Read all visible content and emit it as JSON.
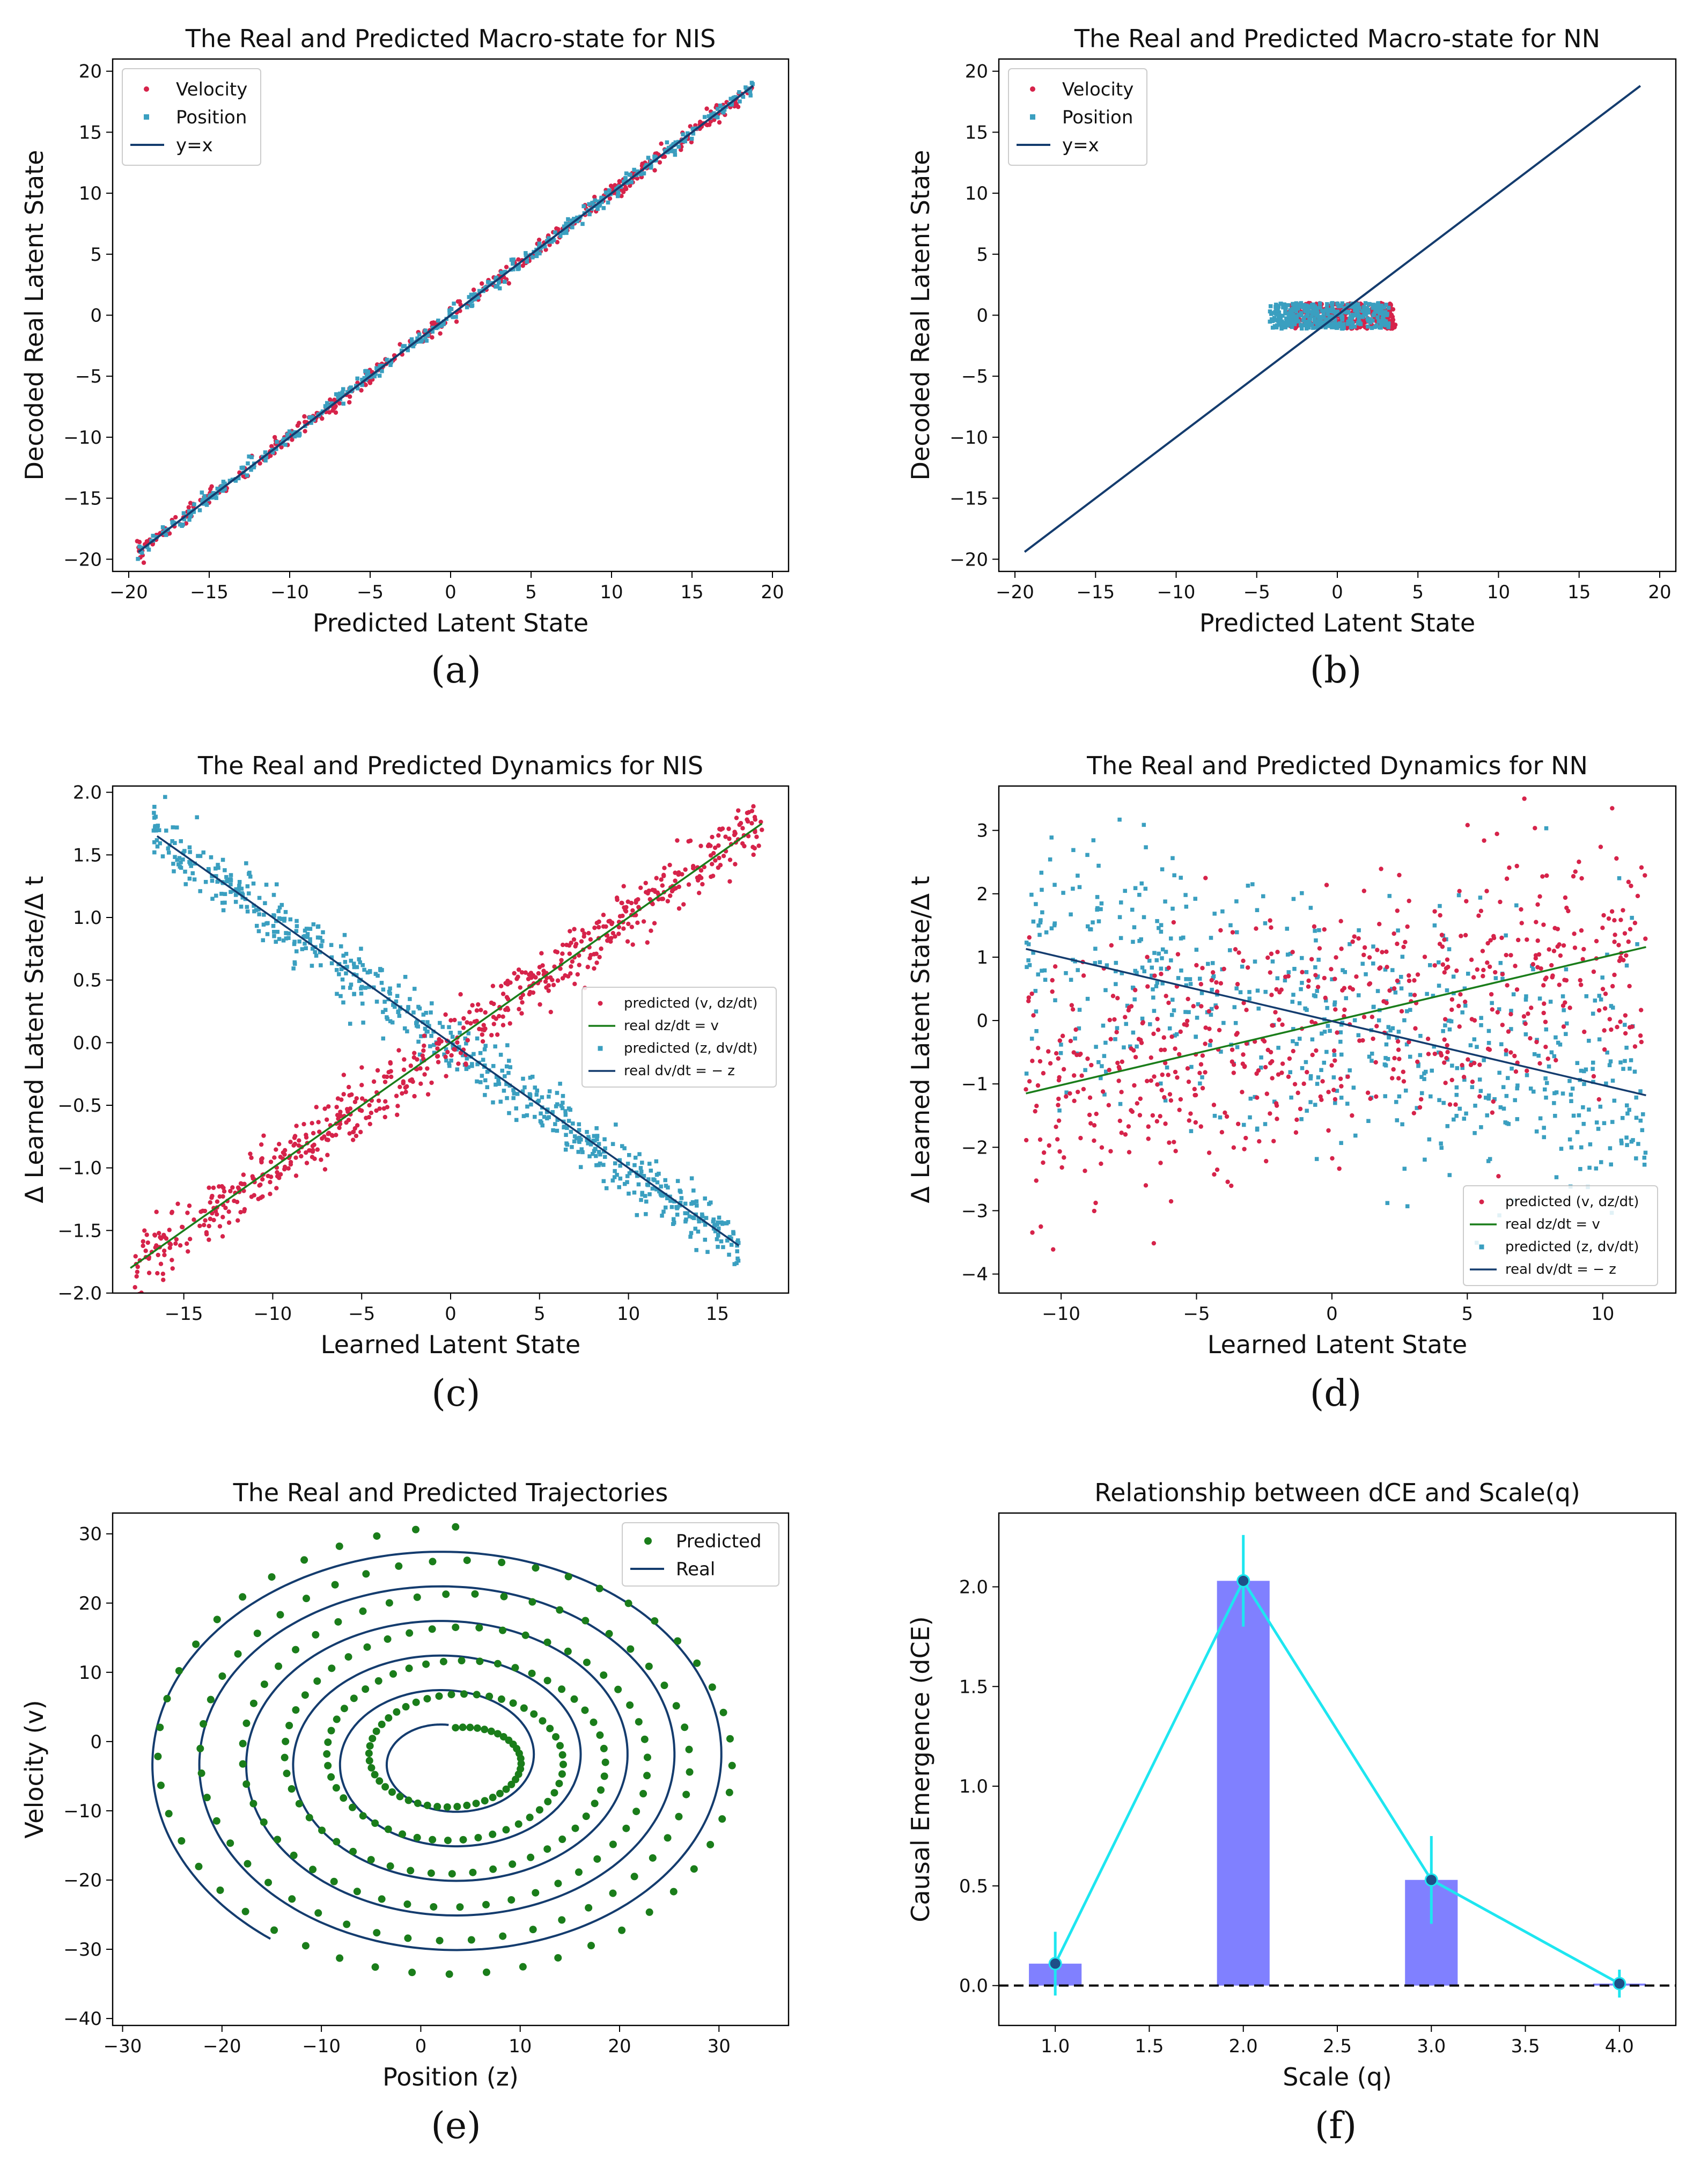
{
  "colors": {
    "velocity": "#d6234a",
    "position": "#3a9fc0",
    "line": "#143c6e",
    "green": "#1a7d1a",
    "bar": "#8080ff",
    "cyan": "#1ee6f0",
    "marker": "#1f4f87"
  },
  "chart_data": [
    {
      "id": "a",
      "type": "scatter",
      "title": "The Real and Predicted Macro-state for NIS",
      "xlabel": "Predicted Latent State",
      "ylabel": "Decoded Real Latent State",
      "xlim": [
        -21,
        21
      ],
      "ylim": [
        -21,
        21
      ],
      "xticks": [
        -20,
        -15,
        -10,
        -5,
        0,
        5,
        10,
        15,
        20
      ],
      "yticks": [
        -20,
        -15,
        -10,
        -5,
        0,
        5,
        10,
        15,
        20
      ],
      "legend": [
        "Velocity",
        "Position",
        "y=x"
      ],
      "legend_loc": "upper-left",
      "series": [
        {
          "name": "Velocity",
          "kind": "dots",
          "relation": "y = x with small noise",
          "x_range": [
            -19.5,
            18.8
          ],
          "noise": 0.35
        },
        {
          "name": "Position",
          "kind": "squares",
          "relation": "y = x with small noise",
          "x_range": [
            -19.5,
            18.8
          ],
          "noise": 0.3
        },
        {
          "name": "y=x",
          "kind": "line",
          "x": [
            -19.4,
            18.8
          ],
          "y": [
            -19.4,
            18.8
          ]
        }
      ],
      "caption": "(a)"
    },
    {
      "id": "b",
      "type": "scatter",
      "title": "The Real and Predicted Macro-state for NN",
      "xlabel": "Predicted Latent State",
      "ylabel": "Decoded Real Latent State",
      "xlim": [
        -21,
        21
      ],
      "ylim": [
        -21,
        21
      ],
      "xticks": [
        -20,
        -15,
        -10,
        -5,
        0,
        5,
        10,
        15,
        20
      ],
      "yticks": [
        -20,
        -15,
        -10,
        -5,
        0,
        5,
        10,
        15,
        20
      ],
      "legend": [
        "Velocity",
        "Position",
        "y=x"
      ],
      "legend_loc": "upper-left",
      "series": [
        {
          "name": "Velocity",
          "kind": "dots",
          "relation": "cluster",
          "x_range": [
            -3,
            3.6
          ],
          "y_range": [
            -1.1,
            1.0
          ]
        },
        {
          "name": "Position",
          "kind": "squares",
          "relation": "cluster",
          "x_range": [
            -4.2,
            3.2
          ],
          "y_range": [
            -1.1,
            1.0
          ]
        },
        {
          "name": "y=x",
          "kind": "line",
          "x": [
            -19.4,
            18.8
          ],
          "y": [
            -19.4,
            18.8
          ]
        }
      ],
      "caption": "(b)"
    },
    {
      "id": "c",
      "type": "scatter",
      "title": "The Real and Predicted Dynamics for NIS",
      "xlabel": "Learned Latent State",
      "ylabel": "Δ Learned Latent State/Δ t",
      "xlim": [
        -19,
        19
      ],
      "ylim": [
        -2.0,
        2.05
      ],
      "xticks": [
        -15,
        -10,
        -5,
        0,
        5,
        10,
        15
      ],
      "yticks": [
        -2.0,
        -1.5,
        -1.0,
        -0.5,
        0.0,
        0.5,
        1.0,
        1.5,
        2.0
      ],
      "ytick_labels": [
        "−2.0",
        "−1.5",
        "−1.0",
        "−0.5",
        "0.0",
        "0.5",
        "1.0",
        "1.5",
        "2.0"
      ],
      "legend": [
        "predicted (v, dz/dt)",
        "real dz/dt = v",
        "predicted (z, dv/dt)",
        "real dv/dt = − z"
      ],
      "legend_loc": "center-right",
      "series": [
        {
          "name": "predicted (v, dz/dt)",
          "kind": "dots",
          "slope": 0.1,
          "x_range": [
            -18,
            17.5
          ],
          "noise": 0.12
        },
        {
          "name": "real dz/dt = v",
          "kind": "line",
          "x": [
            -18,
            17.5
          ],
          "y": [
            -1.8,
            1.75
          ]
        },
        {
          "name": "predicted (z, dv/dt)",
          "kind": "squares",
          "slope": -0.1,
          "x_range": [
            -16.8,
            16.2
          ],
          "noise": 0.11
        },
        {
          "name": "real dv/dt = − z",
          "kind": "line",
          "x": [
            -16.5,
            16.2
          ],
          "y": [
            1.65,
            -1.62
          ]
        }
      ],
      "caption": "(c)"
    },
    {
      "id": "d",
      "type": "scatter",
      "title": "The Real and Predicted Dynamics for NN",
      "xlabel": "Learned Latent State",
      "ylabel": "Δ Learned Latent State/Δ t",
      "xlim": [
        -12.3,
        12.7
      ],
      "ylim": [
        -4.3,
        3.7
      ],
      "xticks": [
        -10,
        -5,
        0,
        5,
        10
      ],
      "yticks": [
        -4,
        -3,
        -2,
        -1,
        0,
        1,
        2,
        3
      ],
      "legend": [
        "predicted (v, dz/dt)",
        "real dz/dt = v",
        "predicted (z, dv/dt)",
        "real dv/dt = − z"
      ],
      "legend_loc": "lower-right",
      "series": [
        {
          "name": "predicted (v, dz/dt)",
          "kind": "dots",
          "slope": 0.1,
          "x_range": [
            -11.3,
            11.6
          ],
          "noise": 1.0
        },
        {
          "name": "real dz/dt = v",
          "kind": "line",
          "x": [
            -11.3,
            11.6
          ],
          "y": [
            -1.15,
            1.16
          ]
        },
        {
          "name": "predicted (z, dv/dt)",
          "kind": "squares",
          "slope": -0.1,
          "x_range": [
            -11.3,
            11.6
          ],
          "noise": 1.0
        },
        {
          "name": "real dv/dt = − z",
          "kind": "line",
          "x": [
            -11.3,
            11.6
          ],
          "y": [
            1.13,
            -1.18
          ]
        }
      ],
      "caption": "(d)"
    },
    {
      "id": "e",
      "type": "scatter",
      "title": "The Real and Predicted Trajectories",
      "xlabel": "Position (z)",
      "ylabel": "Velocity (v)",
      "xlim": [
        -31,
        37
      ],
      "ylim": [
        -41,
        33
      ],
      "xticks": [
        -30,
        -20,
        -10,
        0,
        10,
        20,
        30
      ],
      "yticks": [
        -40,
        -30,
        -20,
        -10,
        0,
        10,
        20,
        30
      ],
      "legend": [
        "Predicted",
        "Real"
      ],
      "legend_loc": "upper-right",
      "series": [
        {
          "name": "Predicted",
          "kind": "spiral-dots",
          "center": [
            3.5,
            -2.5
          ],
          "r_inner": [
            5.5,
            4.5
          ],
          "r_outer": [
            31,
            33.5
          ]
        },
        {
          "name": "Real",
          "kind": "spiral-line",
          "center": [
            2.8,
            -2.6
          ],
          "r_inner": [
            5.0,
            5.0
          ],
          "r_outer": [
            30.5,
            32
          ]
        }
      ],
      "caption": "(e)"
    },
    {
      "id": "f",
      "type": "bar",
      "title": "Relationship between dCE and Scale(q)",
      "xlabel": "Scale (q)",
      "ylabel": "Causal Emergence (dCE)",
      "xlim": [
        0.7,
        4.3
      ],
      "ylim": [
        -0.2,
        2.37
      ],
      "xticks": [
        1.0,
        1.5,
        2.0,
        2.5,
        3.0,
        3.5,
        4.0
      ],
      "yticks": [
        0.0,
        0.5,
        1.0,
        1.5,
        2.0
      ],
      "categories": [
        1.0,
        2.0,
        3.0,
        4.0
      ],
      "values": [
        0.11,
        2.03,
        0.53,
        0.01
      ],
      "errors": [
        0.16,
        0.23,
        0.22,
        0.07
      ],
      "bar_width": 0.28,
      "baseline": 0.0,
      "caption": "(f)"
    }
  ]
}
